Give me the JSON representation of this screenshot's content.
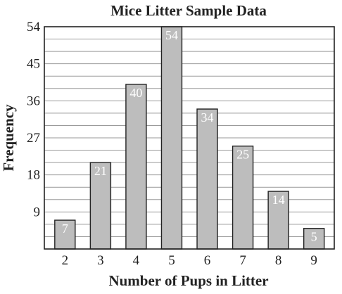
{
  "chart_data": {
    "type": "bar",
    "title": "Mice Litter Sample Data",
    "xlabel": "Number of Pups in Litter",
    "ylabel": "Frequency",
    "categories": [
      "2",
      "3",
      "4",
      "5",
      "6",
      "7",
      "8",
      "9"
    ],
    "values": [
      7,
      21,
      40,
      54,
      34,
      25,
      14,
      5
    ],
    "data_labels": [
      "7",
      "21",
      "40",
      "54",
      "34",
      "25",
      "14",
      "5"
    ],
    "ylim": [
      0,
      54
    ],
    "yticks": [
      "9",
      "18",
      "27",
      "36",
      "45",
      "54"
    ],
    "grid": true,
    "bar_color": "#bdbdbd",
    "bar_edge_color": "#222222"
  }
}
